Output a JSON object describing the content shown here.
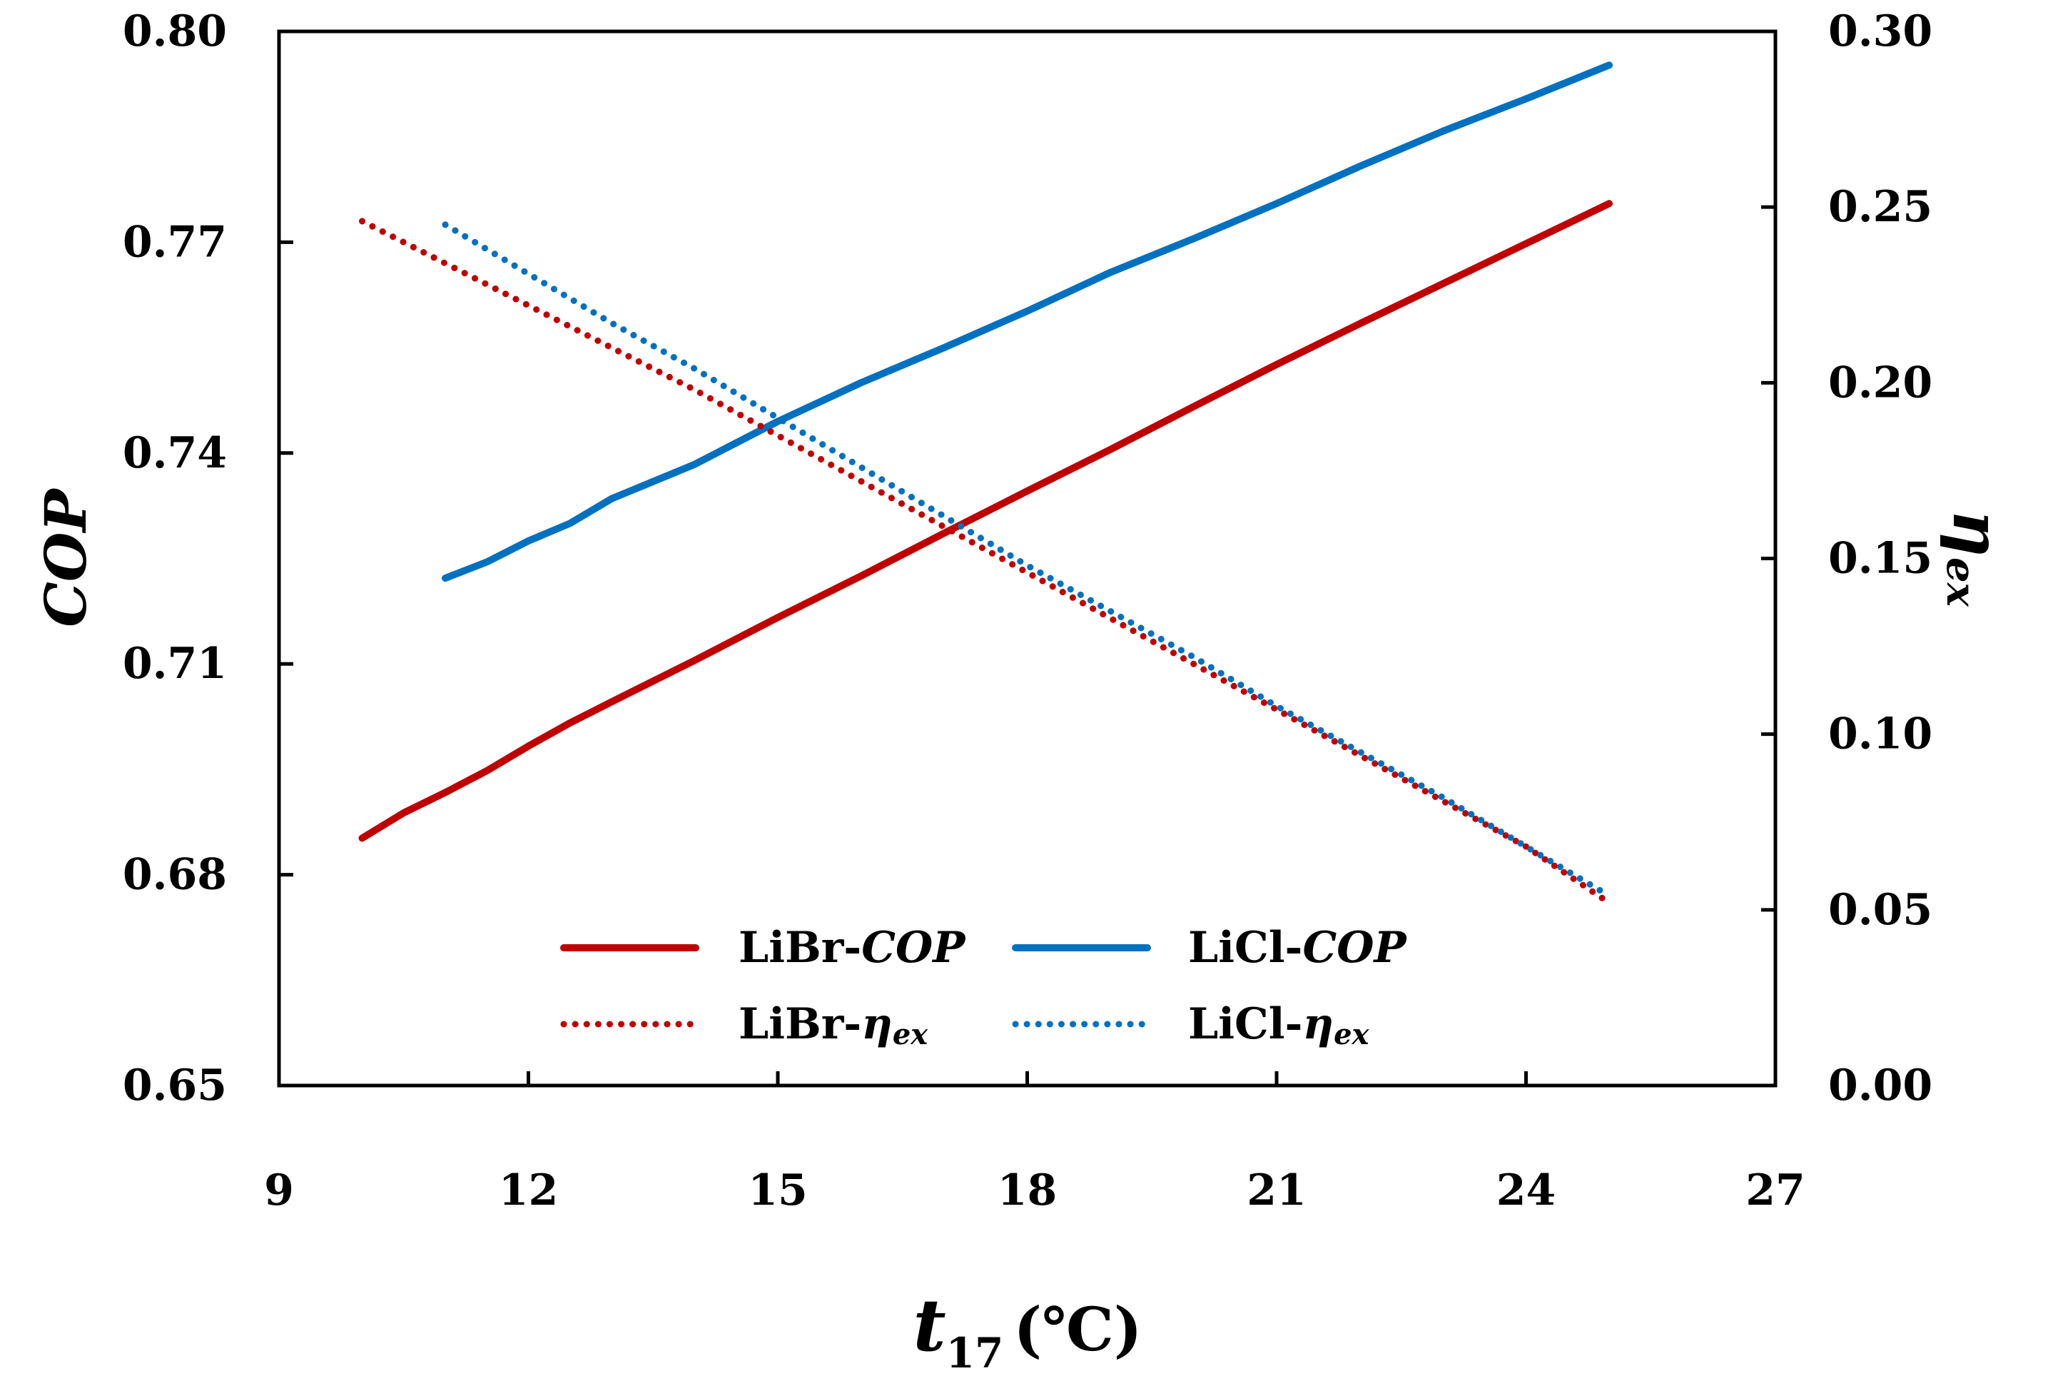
{
  "chart_data": {
    "type": "line",
    "xlabel": {
      "main": "t",
      "sub": "17",
      "unit": "(℃)"
    },
    "ylabel_left": "COP",
    "ylabel_right": {
      "main": "η",
      "sub": "ex"
    },
    "xlim": [
      9,
      27
    ],
    "ylim_left": [
      0.65,
      0.8
    ],
    "ylim_right": [
      0.0,
      0.3
    ],
    "x_ticks": [
      "9",
      "12",
      "15",
      "18",
      "21",
      "24",
      "27"
    ],
    "y_ticks_left": [
      "0.65",
      "0.68",
      "0.71",
      "0.74",
      "0.77",
      "0.80"
    ],
    "y_ticks_right": [
      "0.00",
      "0.05",
      "0.10",
      "0.15",
      "0.20",
      "0.25",
      "0.30"
    ],
    "legend_position": "bottom-center",
    "series": [
      {
        "name": "LiBr-COP",
        "label_main": "LiBr-",
        "label_ital": "COP",
        "label_sub": "",
        "axis": "left",
        "style": "solid",
        "color": "#C00000",
        "x": [
          10,
          10.5,
          11,
          11.5,
          12,
          12.5,
          13,
          14,
          15,
          16,
          17,
          18,
          19,
          20,
          21,
          22,
          23,
          24,
          25
        ],
        "values": [
          0.6852,
          0.6888,
          0.6917,
          0.6948,
          0.6983,
          0.7016,
          0.7046,
          0.7105,
          0.7166,
          0.7225,
          0.7286,
          0.7346,
          0.7405,
          0.7466,
          0.7526,
          0.7584,
          0.7641,
          0.7698,
          0.7755
        ]
      },
      {
        "name": "LiCl-COP",
        "label_main": "LiCl-",
        "label_ital": "COP",
        "label_sub": "",
        "axis": "left",
        "style": "solid",
        "color": "#0070C0",
        "x": [
          11,
          11.5,
          12,
          12.5,
          13,
          14,
          15,
          16,
          17,
          18,
          19,
          20,
          21,
          22,
          23,
          24,
          25
        ],
        "values": [
          0.7222,
          0.7245,
          0.7275,
          0.73,
          0.7335,
          0.7384,
          0.7445,
          0.75,
          0.755,
          0.7602,
          0.7657,
          0.7705,
          0.7755,
          0.7808,
          0.7858,
          0.7904,
          0.7952
        ]
      },
      {
        "name": "LiBr-ηex",
        "label_main": "LiBr-",
        "label_ital": "η",
        "label_sub": "ex",
        "axis": "right",
        "style": "dotted",
        "color": "#C00000",
        "x": [
          10,
          11,
          12,
          13,
          14,
          15,
          16,
          17,
          18,
          19,
          20,
          21,
          22,
          23,
          24,
          25
        ],
        "values": [
          0.246,
          0.234,
          0.222,
          0.21,
          0.198,
          0.185,
          0.172,
          0.159,
          0.146,
          0.133,
          0.12,
          0.107,
          0.094,
          0.081,
          0.068,
          0.052
        ]
      },
      {
        "name": "LiCl-ηex",
        "label_main": "LiCl-",
        "label_ital": "η",
        "label_sub": "ex",
        "axis": "right",
        "style": "dotted",
        "color": "#0070C0",
        "x": [
          11,
          12,
          13,
          14,
          15,
          16,
          17,
          18,
          19,
          20,
          21,
          22,
          23,
          24,
          25
        ],
        "values": [
          0.245,
          0.231,
          0.217,
          0.204,
          0.19,
          0.176,
          0.162,
          0.148,
          0.135,
          0.122,
          0.108,
          0.095,
          0.082,
          0.068,
          0.054
        ]
      }
    ]
  }
}
